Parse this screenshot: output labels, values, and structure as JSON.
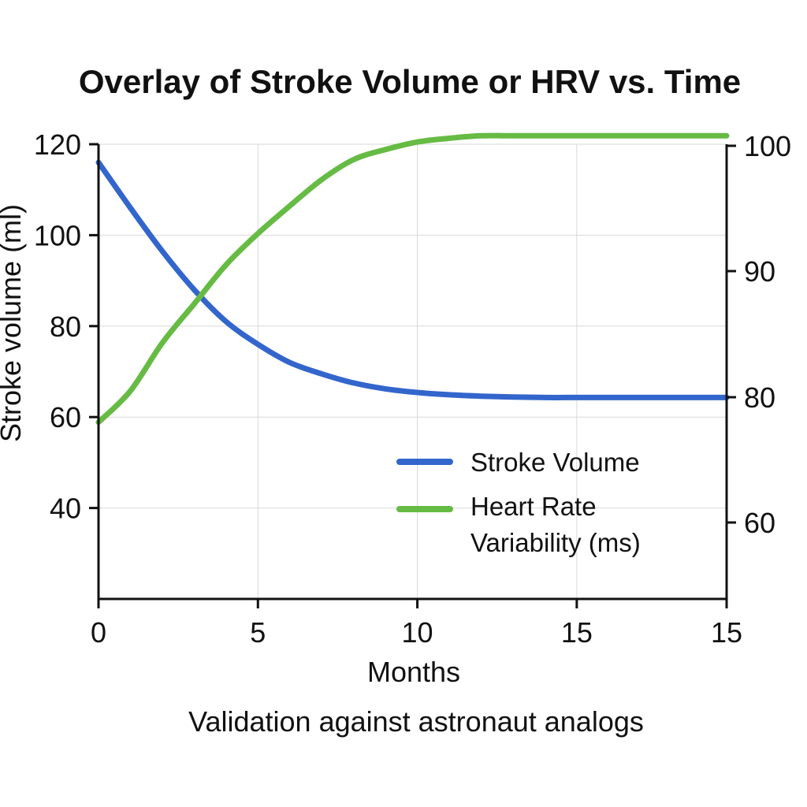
{
  "chart_data": {
    "type": "line",
    "title": "Overlay of Stroke Volume or HRV vs. Time",
    "xlabel": "Months",
    "ylabel_left": "Stroke volume (ml)",
    "caption": "Validation against astronaut analogs",
    "x_ticks": [
      "0",
      "5",
      "10",
      "15",
      "15"
    ],
    "y_left_ticks": [
      "120",
      "100",
      "80",
      "60",
      "40"
    ],
    "y_left_tick_values": [
      120,
      100,
      80,
      60,
      40
    ],
    "y_left_range": [
      20,
      120
    ],
    "y_right_ticks": [
      "100",
      "90",
      "80",
      "60"
    ],
    "y_right_tick_values": [
      100,
      90,
      80,
      60
    ],
    "grid": true,
    "legend_position": "lower-right",
    "series": [
      {
        "name": "Stroke Volume",
        "axis": "left",
        "color": "#3366cc",
        "x": [
          0,
          1,
          2,
          3,
          4,
          5,
          6,
          7,
          8,
          9,
          10,
          11,
          12,
          13,
          14,
          15,
          16,
          17,
          18,
          19.7
        ],
        "values": [
          116,
          106,
          96.5,
          88,
          81,
          76,
          72,
          69.5,
          67.5,
          66.2,
          65.4,
          64.9,
          64.6,
          64.4,
          64.3,
          64.3,
          64.3,
          64.3,
          64.3,
          64.3
        ]
      },
      {
        "name": "Heart Rate Variability (ms)",
        "axis": "right",
        "color": "#66bb44",
        "x": [
          0,
          1,
          2,
          3,
          4,
          5,
          6,
          7,
          8,
          9,
          10,
          11,
          12,
          13,
          14,
          15,
          16,
          17,
          18,
          19.7
        ],
        "values": [
          76,
          80.5,
          84.3,
          87.4,
          90.5,
          93,
          95.2,
          97.3,
          98.9,
          99.7,
          100.3,
          100.6,
          100.8,
          100.8,
          100.8,
          100.8,
          100.8,
          100.8,
          100.8,
          100.8
        ]
      }
    ]
  }
}
